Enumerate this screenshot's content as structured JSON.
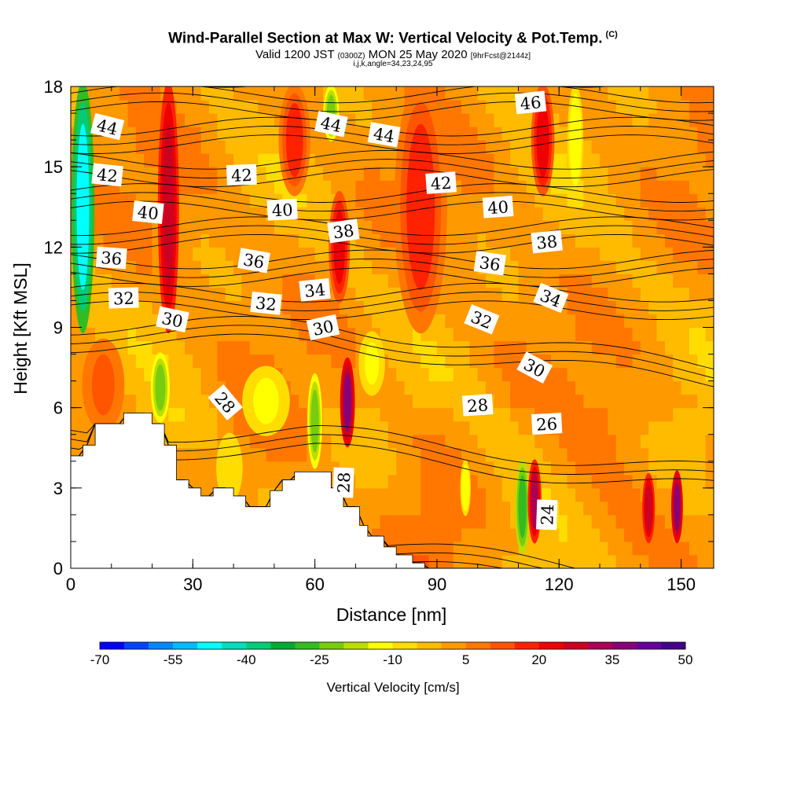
{
  "header": {
    "title": "Wind-Parallel Section at Max W: Vertical Velocity & Pot.Temp.",
    "copyright_mark": "(C)",
    "valid_prefix": "Valid 1200 JST",
    "valid_utc": "(0300Z)",
    "valid_date": "MON 25 May 2020",
    "forecast_info": "[9hrFcst@2144z]",
    "indices": "i,j,k,angle=34,23,24,95"
  },
  "chart_data": {
    "type": "heatmap",
    "title": "Wind-Parallel Section at Max W: Vertical Velocity & Pot.Temp.",
    "xlabel": "Distance [nm]",
    "ylabel": "Height [Kft MSL]",
    "xlim": [
      0,
      158
    ],
    "ylim": [
      0,
      18
    ],
    "x_ticks": [
      "0",
      "30",
      "60",
      "90",
      "120",
      "150"
    ],
    "y_ticks": [
      "0",
      "3",
      "6",
      "9",
      "12",
      "15",
      "18"
    ],
    "colorbar": {
      "label": "Vertical Velocity [cm/s]",
      "labels": [
        "-70",
        "-55",
        "-40",
        "-25",
        "-10",
        "5",
        "20",
        "35",
        "50"
      ],
      "colors": [
        "#0000ff",
        "#0044ff",
        "#0088ff",
        "#00bbff",
        "#00ffff",
        "#00ddbb",
        "#00cc77",
        "#00aa33",
        "#33bb22",
        "#77cc11",
        "#bbdd00",
        "#ffff00",
        "#ffdd00",
        "#ffbb00",
        "#ff9900",
        "#ff7700",
        "#ff5500",
        "#ff2200",
        "#ee0000",
        "#cc0022",
        "#aa0055",
        "#880077",
        "#660099",
        "#440088"
      ]
    },
    "vertical_velocity_features": [
      {
        "x": 3,
        "half_width": 2.2,
        "y_bottom": 9,
        "y_top": 18,
        "value": -50
      },
      {
        "x": 24,
        "half_width": 2.0,
        "y_bottom": 9,
        "y_top": 18,
        "value": 25
      },
      {
        "x": 22,
        "half_width": 1.8,
        "y_bottom": 5.5,
        "y_top": 8,
        "value": -25
      },
      {
        "x": 66,
        "half_width": 2.0,
        "y_bottom": 10,
        "y_top": 14,
        "value": 20
      },
      {
        "x": 68,
        "half_width": 1.4,
        "y_bottom": 4.6,
        "y_top": 7.8,
        "value": 35
      },
      {
        "x": 64,
        "half_width": 1.5,
        "y_bottom": 16,
        "y_top": 18,
        "value": -25
      },
      {
        "x": 60,
        "half_width": 1.4,
        "y_bottom": 3.8,
        "y_top": 7.2,
        "value": -25
      },
      {
        "x": 111,
        "half_width": 1.4,
        "y_bottom": 0.6,
        "y_top": 4.0,
        "value": -30
      },
      {
        "x": 114,
        "half_width": 1.3,
        "y_bottom": 1.0,
        "y_top": 4.0,
        "value": 30
      },
      {
        "x": 116,
        "half_width": 2.2,
        "y_bottom": 14,
        "y_top": 18,
        "value": 20
      },
      {
        "x": 124,
        "half_width": 1.5,
        "y_bottom": 14,
        "y_top": 18,
        "value": -15
      },
      {
        "x": 142,
        "half_width": 1.2,
        "y_bottom": 1.0,
        "y_top": 3.5,
        "value": 25
      },
      {
        "x": 149,
        "half_width": 1.1,
        "y_bottom": 1.0,
        "y_top": 3.6,
        "value": 35
      },
      {
        "x": 97,
        "half_width": 1.0,
        "y_bottom": 2.0,
        "y_top": 4.0,
        "value": -15
      },
      {
        "x": 74,
        "half_width": 2.5,
        "y_bottom": 6.5,
        "y_top": 8.8,
        "value": -12
      },
      {
        "x": 48,
        "half_width": 4.5,
        "y_bottom": 5.0,
        "y_top": 7.5,
        "value": -12
      },
      {
        "x": 39,
        "half_width": 2.5,
        "y_bottom": 2.5,
        "y_top": 5.0,
        "value": -10
      },
      {
        "x": 86,
        "half_width": 5.0,
        "y_bottom": 9,
        "y_top": 18,
        "value": 15
      },
      {
        "x": 55,
        "half_width": 3.0,
        "y_bottom": 14,
        "y_top": 18,
        "value": 15
      },
      {
        "x": 8,
        "half_width": 4.0,
        "y_bottom": 5.2,
        "y_top": 8.5,
        "value": 10
      }
    ],
    "terrain": [
      [
        0,
        4.2
      ],
      [
        3,
        4.2
      ],
      [
        3,
        4.6
      ],
      [
        6,
        4.6
      ],
      [
        6,
        5.4
      ],
      [
        13,
        5.4
      ],
      [
        13,
        5.8
      ],
      [
        20,
        5.8
      ],
      [
        20,
        5.4
      ],
      [
        23,
        5.4
      ],
      [
        23,
        4.6
      ],
      [
        26,
        4.6
      ],
      [
        26,
        3.3
      ],
      [
        29,
        3.3
      ],
      [
        29,
        3.0
      ],
      [
        32,
        3.0
      ],
      [
        32,
        2.7
      ],
      [
        35,
        2.7
      ],
      [
        35,
        3.0
      ],
      [
        40,
        3.0
      ],
      [
        40,
        2.7
      ],
      [
        43,
        2.7
      ],
      [
        43,
        2.3
      ],
      [
        49,
        2.3
      ],
      [
        49,
        2.9
      ],
      [
        52,
        2.9
      ],
      [
        52,
        3.3
      ],
      [
        55,
        3.3
      ],
      [
        55,
        3.6
      ],
      [
        64,
        3.6
      ],
      [
        64,
        3.0
      ],
      [
        67,
        3.0
      ],
      [
        67,
        2.3
      ],
      [
        71,
        2.3
      ],
      [
        71,
        1.6
      ],
      [
        73,
        1.6
      ],
      [
        73,
        1.2
      ],
      [
        77,
        1.2
      ],
      [
        77,
        0.8
      ],
      [
        80,
        0.8
      ],
      [
        80,
        0.5
      ],
      [
        84,
        0.5
      ],
      [
        84,
        0.2
      ],
      [
        87,
        0.2
      ],
      [
        87,
        0
      ]
    ],
    "theta_levels": [
      {
        "value": 24,
        "labeled": true
      },
      {
        "value": 26,
        "labeled": true
      },
      {
        "value": 28,
        "labeled": true
      },
      {
        "value": 30,
        "labeled": true
      },
      {
        "value": 32,
        "labeled": true
      },
      {
        "value": 34,
        "labeled": true
      },
      {
        "value": 36,
        "labeled": true
      },
      {
        "value": 38,
        "labeled": true
      },
      {
        "value": 40,
        "labeled": true
      },
      {
        "value": 42,
        "labeled": true
      },
      {
        "value": 44,
        "labeled": true
      },
      {
        "value": 46,
        "labeled": true
      }
    ],
    "contour_labels": [
      {
        "text": "44",
        "x": 9,
        "y": 16.5,
        "angle": 14
      },
      {
        "text": "44",
        "x": 64,
        "y": 16.6,
        "angle": 12
      },
      {
        "text": "44",
        "x": 77,
        "y": 16.2,
        "angle": 10
      },
      {
        "text": "46",
        "x": 113,
        "y": 17.4,
        "angle": -6
      },
      {
        "text": "42",
        "x": 9,
        "y": 14.7,
        "angle": 6
      },
      {
        "text": "42",
        "x": 42,
        "y": 14.7,
        "angle": -2
      },
      {
        "text": "42",
        "x": 91,
        "y": 14.4,
        "angle": -4
      },
      {
        "text": "40",
        "x": 19,
        "y": 13.3,
        "angle": 6
      },
      {
        "text": "40",
        "x": 52,
        "y": 13.4,
        "angle": -3
      },
      {
        "text": "40",
        "x": 105,
        "y": 13.5,
        "angle": -4
      },
      {
        "text": "38",
        "x": 67,
        "y": 12.6,
        "angle": -8
      },
      {
        "text": "38",
        "x": 117,
        "y": 12.2,
        "angle": -6
      },
      {
        "text": "36",
        "x": 10,
        "y": 11.6,
        "angle": 4
      },
      {
        "text": "36",
        "x": 45,
        "y": 11.5,
        "angle": 10
      },
      {
        "text": "36",
        "x": 103,
        "y": 11.4,
        "angle": 8
      },
      {
        "text": "34",
        "x": 60,
        "y": 10.4,
        "angle": -6
      },
      {
        "text": "34",
        "x": 118,
        "y": 10.1,
        "angle": 22
      },
      {
        "text": "32",
        "x": 13,
        "y": 10.1,
        "angle": -2
      },
      {
        "text": "32",
        "x": 48,
        "y": 9.9,
        "angle": 6
      },
      {
        "text": "32",
        "x": 101,
        "y": 9.3,
        "angle": 22
      },
      {
        "text": "30",
        "x": 25,
        "y": 9.3,
        "angle": 12
      },
      {
        "text": "30",
        "x": 62,
        "y": 9.0,
        "angle": -12
      },
      {
        "text": "30",
        "x": 114,
        "y": 7.5,
        "angle": 28
      },
      {
        "text": "28",
        "x": 38,
        "y": 6.2,
        "angle": 50
      },
      {
        "text": "28",
        "x": 67,
        "y": 3.2,
        "angle": -88
      },
      {
        "text": "28",
        "x": 100,
        "y": 6.1,
        "angle": -4
      },
      {
        "text": "26",
        "x": 117,
        "y": 5.4,
        "angle": -3
      },
      {
        "text": "24",
        "x": 117,
        "y": 2.0,
        "angle": -88
      }
    ]
  }
}
